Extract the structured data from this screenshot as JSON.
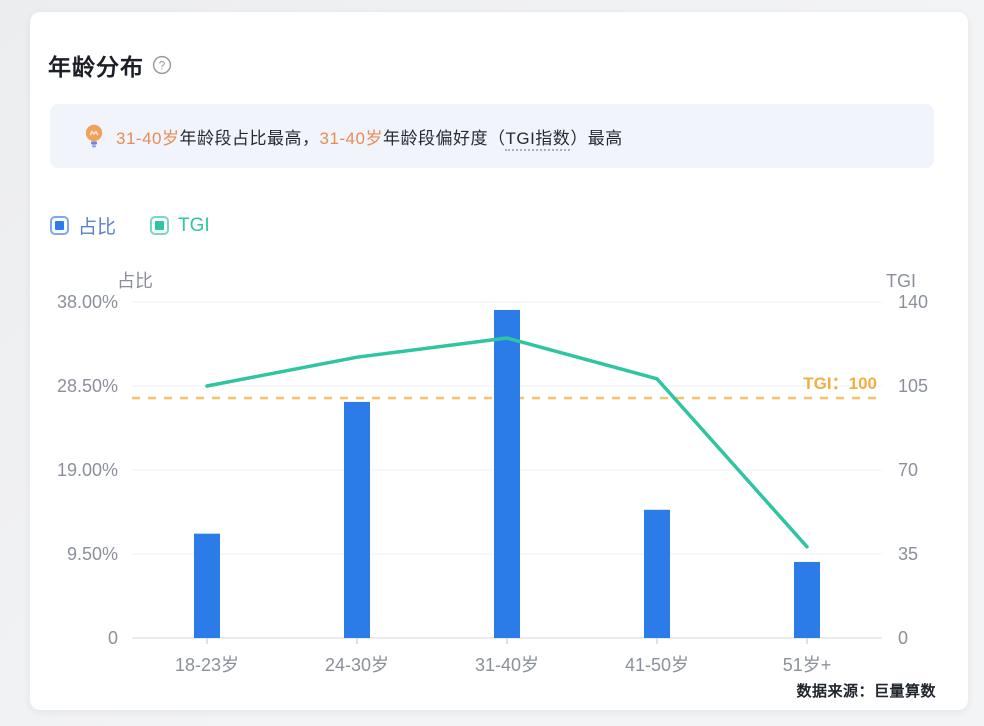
{
  "page": {
    "title": "年龄分布"
  },
  "banner": {
    "segments": [
      {
        "text": "31-40岁",
        "style": "highlight"
      },
      {
        "text": "年龄段占比最高，",
        "style": "normal"
      },
      {
        "text": "31-40岁",
        "style": "highlight"
      },
      {
        "text": "年龄段偏好度（",
        "style": "normal"
      },
      {
        "text": "TGI指数",
        "style": "dotted"
      },
      {
        "text": "）最高",
        "style": "normal"
      }
    ]
  },
  "legend": [
    {
      "label": "占比",
      "color": "#2B7CE9"
    },
    {
      "label": "TGI",
      "color": "#2EC5A0"
    }
  ],
  "chart_data": {
    "type": "bar",
    "subtype": "bar+line dual-axis",
    "categories": [
      "18-23岁",
      "24-30岁",
      "31-40岁",
      "41-50岁",
      "51岁+"
    ],
    "series": [
      {
        "name": "占比",
        "type": "bar",
        "axis": "left",
        "unit": "%",
        "values": [
          11.8,
          26.7,
          37.1,
          14.5,
          8.6
        ],
        "color": "#2B7CE9"
      },
      {
        "name": "TGI",
        "type": "line",
        "axis": "right",
        "values": [
          105,
          117,
          125,
          108,
          38
        ],
        "color": "#2EC5A0"
      }
    ],
    "left_axis": {
      "title": "占比",
      "ticks": [
        "38.00%",
        "28.50%",
        "19.00%",
        "9.50%",
        "0"
      ],
      "max": 38,
      "min": 0
    },
    "right_axis": {
      "title": "TGI",
      "ticks": [
        "140",
        "105",
        "70",
        "35",
        "0"
      ],
      "max": 140,
      "min": 0
    },
    "reference_line": {
      "value": 100,
      "axis": "right",
      "label": "TGI：100",
      "color": "#F3C36A",
      "label_color": "#F0AE43"
    },
    "grid": true,
    "legend_position": "top-left"
  },
  "footer": {
    "source": "数据来源：巨量算数"
  }
}
